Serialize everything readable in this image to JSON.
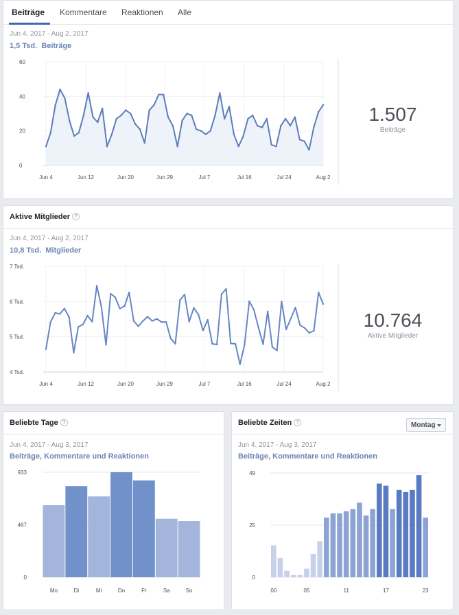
{
  "tabs": [
    "Beiträge",
    "Kommentare",
    "Reaktionen",
    "Alle"
  ],
  "posts": {
    "range": "Jun 4, 2017 - Aug 2, 2017",
    "metric_value": "1,5 Tsd.",
    "metric_label": "Beiträge",
    "big_value": "1.507",
    "big_label": "Beiträge"
  },
  "members": {
    "title": "Aktive Mitglieder",
    "range": "Jun 4, 2017 - Aug 2, 2017",
    "metric_value": "10,8 Tsd.",
    "metric_label": "Mitglieder",
    "big_value": "10.764",
    "big_label": "Aktive Mitglieder"
  },
  "days": {
    "title": "Beliebte Tage",
    "range": "Jun 4, 2017 - Aug 3, 2017",
    "subtitle": "Beiträge, Kommentare und Reaktionen"
  },
  "times": {
    "title": "Beliebte Zeiten",
    "range": "Jun 4, 2017 - Aug 3, 2017",
    "subtitle": "Beiträge, Kommentare und Reaktionen",
    "select_value": "Montag"
  },
  "help_icon": "?",
  "chart_data": [
    {
      "type": "area",
      "x_ticks": [
        "Jun 4",
        "Jun 12",
        "Jun 20",
        "Jun 29",
        "Jul 7",
        "Jul 16",
        "Jul 24",
        "Aug 2"
      ],
      "y_ticks": [
        "0",
        "20",
        "40",
        "60"
      ],
      "ylim": [
        0,
        60
      ],
      "series": [
        {
          "values": [
            11,
            19,
            35,
            44,
            39,
            26,
            17,
            19,
            29,
            42,
            28,
            25,
            33,
            11,
            18,
            27,
            29,
            32,
            30,
            24,
            21,
            13,
            32,
            35,
            41,
            41,
            28,
            23,
            11,
            26,
            30,
            29,
            21,
            20,
            18,
            20,
            29,
            42,
            27,
            34,
            18,
            11,
            17,
            27,
            29,
            23,
            22,
            27,
            12,
            11,
            23,
            27,
            23,
            28,
            15,
            14,
            9,
            22,
            31,
            35
          ],
          "color": "#5b7db9"
        }
      ],
      "grid": true
    },
    {
      "type": "line",
      "x_ticks": [
        "Jun 4",
        "Jun 12",
        "Jun 20",
        "Jun 29",
        "Jul 7",
        "Jul 16",
        "Jul 24",
        "Aug 2"
      ],
      "y_ticks": [
        "4 Tsd.",
        "5 Tsd.",
        "6 Tsd.",
        "7 Tsd."
      ],
      "ylim": [
        4000,
        7000
      ],
      "series": [
        {
          "values": [
            4650,
            5420,
            5680,
            5650,
            5800,
            5560,
            4550,
            5280,
            5350,
            5600,
            5430,
            6450,
            5850,
            4770,
            6220,
            6120,
            5800,
            5870,
            6260,
            5450,
            5300,
            5450,
            5570,
            5450,
            5510,
            5420,
            5420,
            4950,
            4800,
            6040,
            6200,
            5430,
            5820,
            5630,
            5180,
            5480,
            4800,
            4780,
            6210,
            6360,
            4810,
            4800,
            4220,
            4780,
            6010,
            5770,
            5260,
            4790,
            5720,
            4710,
            4610,
            6000,
            5210,
            5520,
            5830,
            5330,
            5250,
            5110,
            5170,
            6260,
            5930
          ],
          "color": "#6387c3"
        }
      ],
      "grid": true
    },
    {
      "type": "bar",
      "categories": [
        "Mo",
        "Di",
        "Mi",
        "Do",
        "Fr",
        "Sa",
        "So"
      ],
      "values": [
        640,
        810,
        718,
        933,
        860,
        520,
        500
      ],
      "y_ticks": [
        "0",
        "467",
        "933"
      ],
      "ylim": [
        0,
        933
      ],
      "colors": [
        "#a4b5dc",
        "#7191cb",
        "#a4b5dc",
        "#7191cb",
        "#7191cb",
        "#a4b5dc",
        "#a4b5dc"
      ]
    },
    {
      "type": "bar",
      "categories": [
        "00",
        "01",
        "02",
        "03",
        "04",
        "05",
        "06",
        "07",
        "08",
        "09",
        "10",
        "11",
        "12",
        "13",
        "14",
        "15",
        "16",
        "17",
        "18",
        "19",
        "20",
        "21",
        "22",
        "23"
      ],
      "x_ticks": [
        "00",
        "05",
        "11",
        "17",
        "23"
      ],
      "values": [
        15,
        9,
        3,
        1,
        1,
        4,
        11,
        17,
        28,
        30,
        30,
        31,
        32,
        35,
        29,
        32,
        44,
        43,
        32,
        41,
        40,
        41,
        48,
        28
      ],
      "y_ticks": [
        "0",
        "25",
        "49"
      ],
      "ylim": [
        0,
        49
      ],
      "colors": [
        "#c6d1ea",
        "#c6d1ea",
        "#c6d1ea",
        "#c6d1ea",
        "#c6d1ea",
        "#c6d1ea",
        "#c6d1ea",
        "#c6d1ea",
        "#8da3d3",
        "#8da3d3",
        "#8da3d3",
        "#8da3d3",
        "#8da3d3",
        "#8da3d3",
        "#8da3d3",
        "#8da3d3",
        "#5a7bc1",
        "#5a7bc1",
        "#8da3d3",
        "#5a7bc1",
        "#5a7bc1",
        "#5a7bc1",
        "#5a7bc1",
        "#8da3d3"
      ]
    }
  ]
}
